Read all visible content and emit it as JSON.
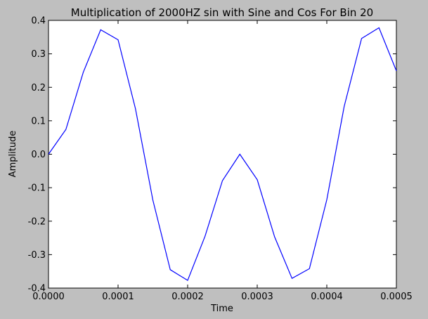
{
  "chart_data": {
    "type": "line",
    "title": "Multiplication of 2000HZ sin with Sine and Cos For Bin 20",
    "xlabel": "Time",
    "ylabel": "Amplitude",
    "xlim": [
      0.0,
      0.0005
    ],
    "ylim": [
      -0.4,
      0.4
    ],
    "x_ticks": [
      "0.0000",
      "0.0001",
      "0.0002",
      "0.0003",
      "0.0004",
      "0.0005"
    ],
    "y_ticks": [
      "0.4",
      "0.3",
      "0.2",
      "0.1",
      "0.0",
      "-0.1",
      "-0.2",
      "-0.3",
      "-0.4"
    ],
    "grid": false,
    "colors": {
      "line": "#0000ff",
      "background": "#bfbfbf",
      "plot_area": "#ffffff"
    },
    "series": [
      {
        "x": [
          0.0,
          2.5e-05,
          5e-05,
          7.5e-05,
          0.0001,
          0.000125,
          0.00015,
          0.000175,
          0.0002,
          0.000225,
          0.00025,
          0.000275,
          0.0003,
          0.000325,
          0.00035,
          0.000375,
          0.0004,
          0.000425,
          0.00045,
          0.000475,
          0.0005
        ],
        "y": [
          0.0,
          0.074,
          0.245,
          0.372,
          0.342,
          0.136,
          -0.137,
          -0.345,
          -0.377,
          -0.245,
          -0.079,
          0.0,
          -0.076,
          -0.247,
          -0.371,
          -0.342,
          -0.136,
          0.143,
          0.346,
          0.378,
          0.249
        ]
      }
    ]
  }
}
